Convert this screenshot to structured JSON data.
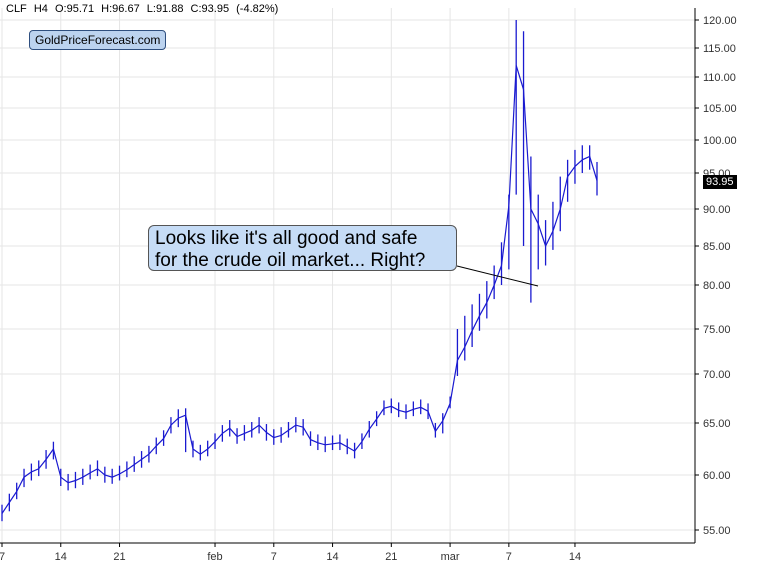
{
  "header": {
    "symbol": "CLF",
    "timeframe": "H4",
    "open": "O:95.71",
    "high": "H:96.67",
    "low": "L:91.88",
    "close": "C:93.95",
    "change": "(-4.82%)"
  },
  "brand": "GoldPriceForecast.com",
  "annotation": {
    "line1": "Looks like it's all good and safe",
    "line2": "for the crude oil market... Right?"
  },
  "last_price_label": "93.95",
  "colors": {
    "line": "#1a1ad0",
    "grid": "#e6e6e6",
    "axis": "#000000",
    "callout": "#c6dcf6"
  },
  "chart_data": {
    "type": "line",
    "title": "",
    "xlabel": "",
    "ylabel": "",
    "ylim": [
      54,
      122
    ],
    "y_ticks": [
      55,
      60,
      65,
      70,
      75,
      80,
      85,
      90,
      95,
      100,
      105,
      110,
      115,
      120
    ],
    "y_tick_labels": [
      "55.00",
      "60.00",
      "65.00",
      "70.00",
      "75.00",
      "80.00",
      "85.00",
      "90.00",
      "95.00",
      "100.00",
      "105.00",
      "110.00",
      "115.00",
      "120.00"
    ],
    "x_tick_labels": [
      "7",
      "14",
      "21",
      "feb",
      "7",
      "14",
      "21",
      "mar",
      "7",
      "14"
    ],
    "x_tick_index": [
      0,
      8,
      16,
      29,
      37,
      45,
      53,
      61,
      69,
      78
    ],
    "grid": true,
    "y_axis_side": "right",
    "series": [
      {
        "values": [
          56.5,
          57.5,
          58.5,
          59.8,
          60.3,
          60.6,
          61.5,
          62.5,
          59.8,
          59.3,
          59.5,
          59.8,
          60.2,
          60.6,
          60.0,
          59.8,
          60.1,
          60.5,
          61.0,
          61.5,
          62.0,
          62.8,
          63.5,
          64.8,
          65.5,
          65.8,
          62.5,
          62.0,
          62.5,
          63.2,
          64.0,
          64.5,
          63.7,
          64.0,
          64.3,
          64.8,
          64.1,
          63.6,
          63.8,
          64.3,
          64.8,
          64.6,
          63.4,
          63.1,
          62.9,
          63.0,
          63.1,
          62.7,
          62.3,
          63.2,
          64.4,
          65.4,
          66.5,
          66.7,
          66.3,
          66.1,
          66.4,
          66.6,
          66.2,
          64.2,
          65.2,
          67.0,
          71.5,
          73.0,
          74.8,
          76.5,
          78.0,
          80.0,
          82.5,
          90.5,
          112.0,
          108.0,
          90.0,
          88.0,
          85.0,
          87.0,
          90.0,
          94.5,
          96.0,
          97.0,
          97.5,
          93.95
        ],
        "min": [
          55.8,
          56.7,
          57.8,
          58.9,
          59.5,
          59.9,
          60.6,
          61.5,
          59.0,
          58.6,
          58.8,
          59.1,
          59.6,
          59.9,
          59.3,
          59.2,
          59.5,
          59.8,
          60.3,
          60.7,
          61.2,
          62.0,
          62.8,
          64.0,
          64.6,
          62.2,
          61.7,
          61.4,
          61.8,
          62.5,
          63.2,
          63.7,
          63.0,
          63.3,
          63.6,
          64.0,
          63.3,
          62.9,
          63.1,
          63.6,
          64.1,
          63.8,
          62.8,
          62.4,
          62.2,
          62.4,
          62.4,
          62.0,
          61.6,
          62.5,
          63.6,
          64.7,
          65.8,
          66.0,
          65.6,
          65.4,
          65.7,
          65.9,
          65.4,
          63.6,
          64.0,
          66.5,
          69.8,
          71.5,
          73.0,
          74.8,
          76.2,
          78.4,
          80.0,
          82.0,
          92.0,
          85.0,
          78.0,
          82.0,
          82.5,
          84.5,
          87.0,
          91.0,
          93.5,
          95.0,
          95.5,
          91.88
        ],
        "max": [
          57.3,
          58.3,
          59.3,
          60.6,
          61.1,
          61.4,
          62.4,
          63.2,
          60.6,
          60.1,
          60.3,
          60.6,
          61.0,
          61.4,
          60.8,
          60.6,
          60.9,
          61.3,
          61.8,
          62.3,
          62.8,
          63.6,
          64.3,
          65.6,
          66.4,
          66.5,
          63.3,
          62.9,
          63.3,
          64.0,
          64.8,
          65.3,
          64.5,
          64.8,
          65.1,
          65.6,
          64.9,
          64.4,
          64.6,
          65.1,
          65.6,
          65.4,
          64.2,
          63.9,
          63.7,
          63.8,
          63.9,
          63.5,
          63.1,
          64.0,
          65.2,
          66.2,
          67.3,
          67.5,
          67.1,
          66.9,
          67.2,
          67.4,
          67.0,
          65.0,
          66.0,
          67.7,
          75.0,
          76.5,
          77.8,
          79.0,
          80.5,
          82.5,
          85.5,
          92.0,
          120.0,
          118.0,
          97.5,
          92.0,
          88.5,
          91.0,
          94.5,
          97.0,
          98.5,
          99.2,
          99.2,
          96.67
        ]
      }
    ]
  }
}
